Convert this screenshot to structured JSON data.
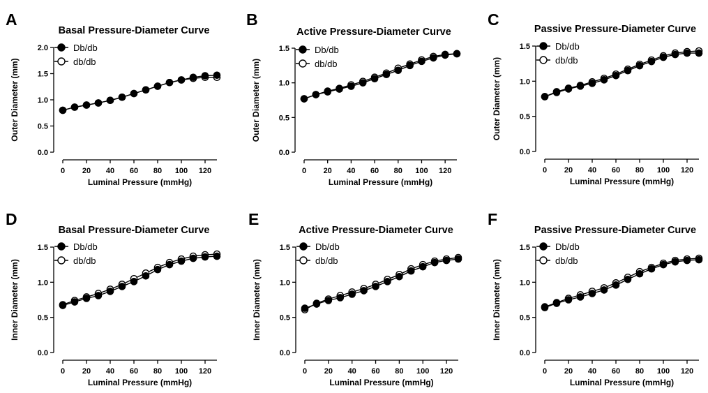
{
  "colors": {
    "db_db_fill": "#000000",
    "db_db_lower_fill": "#ffffff",
    "stroke": "#000000"
  },
  "chart_data": [
    {
      "panel": "A",
      "type": "line",
      "title": "Basal Pressure-Diameter Curve",
      "xlabel": "Luminal Pressure (mmHg)",
      "ylabel": "Outer Diameter (mm)",
      "xlim": [
        0,
        130
      ],
      "ylim": [
        0,
        2.0
      ],
      "xticks": [
        0,
        20,
        40,
        60,
        80,
        100,
        120
      ],
      "yticks": [
        "0.0",
        "0.5",
        "1.0",
        "1.5",
        "2.0"
      ],
      "x": [
        0,
        10,
        20,
        30,
        40,
        50,
        60,
        70,
        80,
        90,
        100,
        110,
        120,
        130
      ],
      "series": [
        {
          "name": "Db/db",
          "marker": "filled",
          "values": [
            0.8,
            0.86,
            0.9,
            0.94,
            0.99,
            1.05,
            1.12,
            1.19,
            1.26,
            1.33,
            1.38,
            1.43,
            1.46,
            1.47
          ]
        },
        {
          "name": "db/db",
          "marker": "open",
          "values": [
            0.8,
            0.86,
            0.9,
            0.94,
            0.99,
            1.05,
            1.12,
            1.19,
            1.26,
            1.33,
            1.38,
            1.41,
            1.43,
            1.43
          ]
        }
      ],
      "legend": "top-left",
      "grid": false
    },
    {
      "panel": "B",
      "type": "line",
      "title": "Active Pressure-Diameter Curve",
      "xlabel": "Luminal Pressure (mmHg)",
      "ylabel": "Outer Diameter (mm)",
      "xlim": [
        0,
        130
      ],
      "ylim": [
        0,
        1.5
      ],
      "xticks": [
        0,
        20,
        40,
        60,
        80,
        100,
        120
      ],
      "yticks": [
        "0.0",
        "0.5",
        "1.0",
        "1.5"
      ],
      "x": [
        0,
        10,
        20,
        30,
        40,
        50,
        60,
        70,
        80,
        90,
        100,
        110,
        120,
        130
      ],
      "series": [
        {
          "name": "Db/db",
          "marker": "filled",
          "values": [
            0.77,
            0.83,
            0.87,
            0.91,
            0.95,
            1.0,
            1.06,
            1.12,
            1.18,
            1.25,
            1.31,
            1.36,
            1.4,
            1.42
          ]
        },
        {
          "name": "db/db",
          "marker": "open",
          "values": [
            0.77,
            0.83,
            0.88,
            0.92,
            0.97,
            1.02,
            1.08,
            1.14,
            1.21,
            1.27,
            1.33,
            1.38,
            1.41,
            1.42
          ]
        }
      ],
      "legend": "top-left",
      "grid": false
    },
    {
      "panel": "C",
      "type": "line",
      "title": "Passive Pressure-Diameter Curve",
      "xlabel": "Luminal Pressure (mmHg)",
      "ylabel": "Outer Diameter (mm)",
      "xlim": [
        0,
        130
      ],
      "ylim": [
        0,
        1.5
      ],
      "xticks": [
        0,
        20,
        40,
        60,
        80,
        100,
        120
      ],
      "yticks": [
        "0.0",
        "0.5",
        "1.0",
        "1.5"
      ],
      "x": [
        0,
        10,
        20,
        30,
        40,
        50,
        60,
        70,
        80,
        90,
        100,
        110,
        120,
        130
      ],
      "series": [
        {
          "name": "Db/db",
          "marker": "filled",
          "values": [
            0.78,
            0.84,
            0.89,
            0.93,
            0.97,
            1.02,
            1.08,
            1.15,
            1.22,
            1.28,
            1.34,
            1.38,
            1.4,
            1.4
          ]
        },
        {
          "name": "db/db",
          "marker": "open",
          "values": [
            0.78,
            0.85,
            0.9,
            0.94,
            0.99,
            1.04,
            1.1,
            1.17,
            1.24,
            1.3,
            1.36,
            1.4,
            1.42,
            1.43
          ]
        }
      ],
      "legend": "top-left",
      "grid": false
    },
    {
      "panel": "D",
      "type": "line",
      "title": "Basal Pressure-Diameter Curve",
      "xlabel": "Luminal Pressure (mmHg)",
      "ylabel": "Inner Diameter (mm)",
      "xlim": [
        0,
        130
      ],
      "ylim": [
        0,
        1.5
      ],
      "xticks": [
        0,
        20,
        40,
        60,
        80,
        100,
        120
      ],
      "yticks": [
        "0.0",
        "0.5",
        "1.0",
        "1.5"
      ],
      "x": [
        0,
        10,
        20,
        30,
        40,
        50,
        60,
        70,
        80,
        90,
        100,
        110,
        120,
        130
      ],
      "series": [
        {
          "name": "Db/db",
          "marker": "filled",
          "values": [
            0.67,
            0.72,
            0.77,
            0.81,
            0.87,
            0.94,
            1.01,
            1.09,
            1.18,
            1.25,
            1.3,
            1.34,
            1.36,
            1.37
          ]
        },
        {
          "name": "db/db",
          "marker": "open",
          "values": [
            0.68,
            0.74,
            0.79,
            0.84,
            0.9,
            0.97,
            1.05,
            1.13,
            1.21,
            1.28,
            1.33,
            1.37,
            1.39,
            1.4
          ]
        }
      ],
      "legend": "top-left",
      "grid": false
    },
    {
      "panel": "E",
      "type": "line",
      "title": "Active Pressure-Diameter Curve",
      "xlabel": "Luminal Pressure (mmHg)",
      "ylabel": "Inner Diameter (mm)",
      "xlim": [
        0,
        130
      ],
      "ylim": [
        0,
        1.5
      ],
      "xticks": [
        0,
        20,
        40,
        60,
        80,
        100,
        120
      ],
      "yticks": [
        "0.0",
        "0.5",
        "1.0",
        "1.5"
      ],
      "x": [
        0,
        10,
        20,
        30,
        40,
        50,
        60,
        70,
        80,
        90,
        100,
        110,
        120,
        130
      ],
      "series": [
        {
          "name": "Db/db",
          "marker": "filled",
          "values": [
            0.63,
            0.69,
            0.74,
            0.78,
            0.83,
            0.88,
            0.94,
            1.01,
            1.08,
            1.16,
            1.22,
            1.28,
            1.31,
            1.33
          ]
        },
        {
          "name": "db/db",
          "marker": "open",
          "values": [
            0.61,
            0.7,
            0.76,
            0.81,
            0.86,
            0.91,
            0.97,
            1.04,
            1.11,
            1.19,
            1.25,
            1.3,
            1.33,
            1.35
          ]
        }
      ],
      "legend": "top-left",
      "grid": false
    },
    {
      "panel": "F",
      "type": "line",
      "title": "Passive Pressure-Diameter Curve",
      "xlabel": "Luminal Pressure (mmHg)",
      "ylabel": "Inner Diameter (mm)",
      "xlim": [
        0,
        130
      ],
      "ylim": [
        0,
        1.5
      ],
      "xticks": [
        0,
        20,
        40,
        60,
        80,
        100,
        120
      ],
      "yticks": [
        "0.0",
        "0.5",
        "1.0",
        "1.5"
      ],
      "x": [
        0,
        10,
        20,
        30,
        40,
        50,
        60,
        70,
        80,
        90,
        100,
        110,
        120,
        130
      ],
      "series": [
        {
          "name": "Db/db",
          "marker": "filled",
          "values": [
            0.64,
            0.7,
            0.75,
            0.79,
            0.84,
            0.89,
            0.96,
            1.04,
            1.12,
            1.19,
            1.25,
            1.29,
            1.31,
            1.32
          ]
        },
        {
          "name": "db/db",
          "marker": "open",
          "values": [
            0.65,
            0.71,
            0.77,
            0.82,
            0.87,
            0.92,
            0.99,
            1.07,
            1.15,
            1.21,
            1.27,
            1.31,
            1.33,
            1.34
          ]
        }
      ],
      "legend": "top-left",
      "grid": false
    }
  ]
}
